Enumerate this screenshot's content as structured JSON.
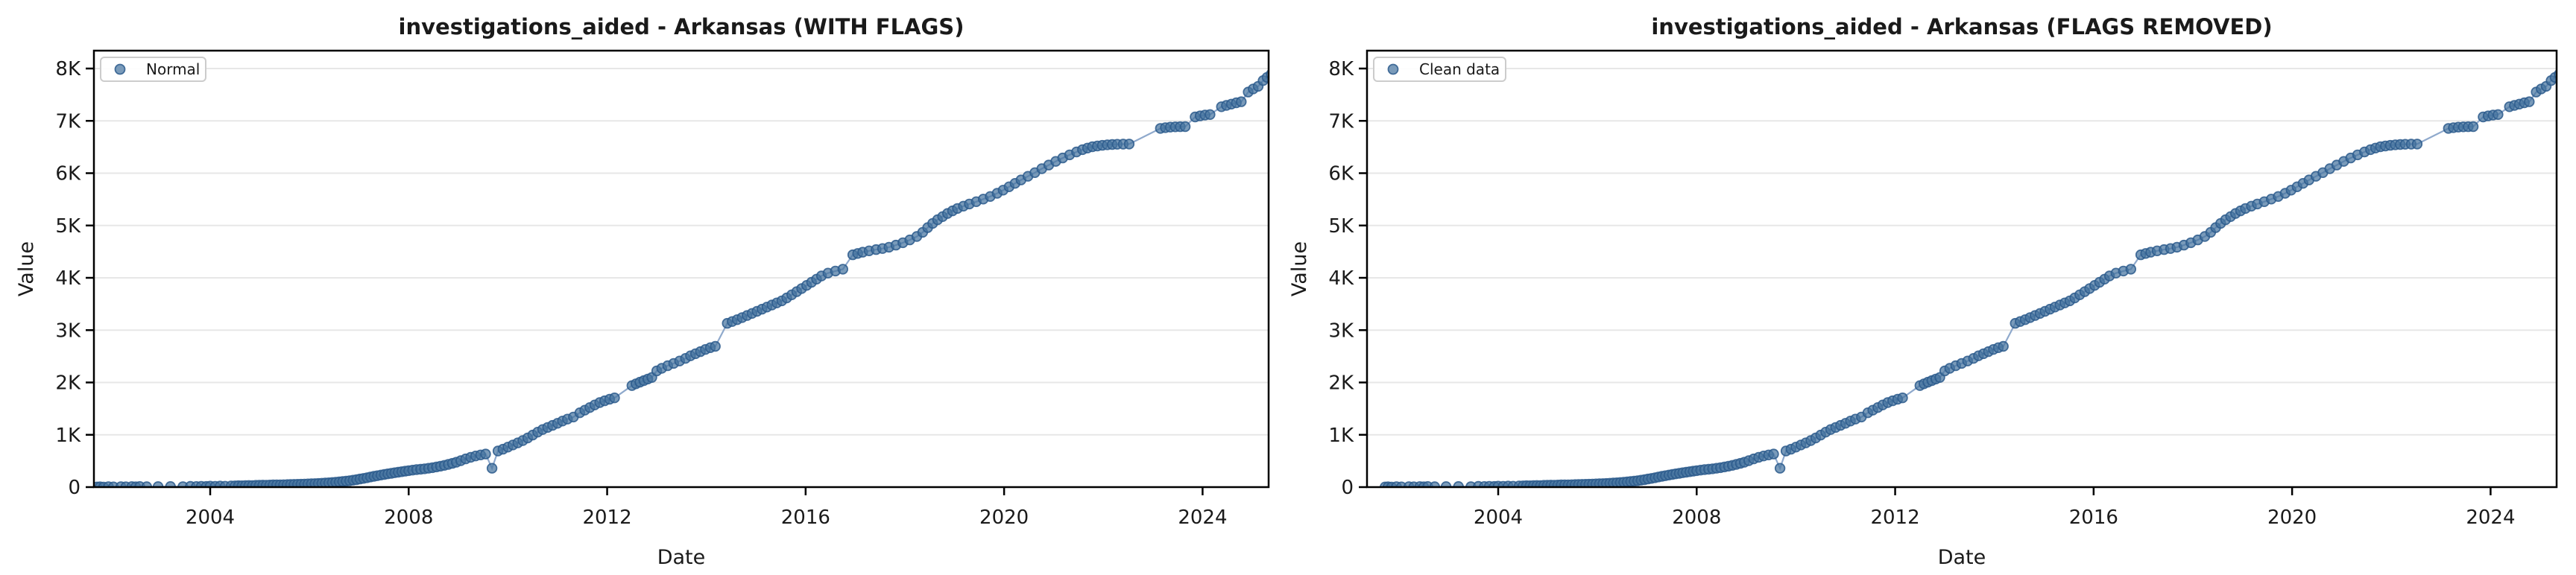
{
  "figure": {
    "background": "#ffffff",
    "marker_fill": "#46749f",
    "marker_fill_opacity": 0.72,
    "marker_edge": "#2c5a8c",
    "marker_edge_opacity": 0.85,
    "line_color": "#8fa9cc",
    "grid_color": "#e7e7e7",
    "spine_color": "#000000",
    "text_color": "#1a1a1a"
  },
  "chart_data": [
    {
      "type": "scatter",
      "title": "investigations_aided - Arkansas (WITH FLAGS)",
      "xlabel": "Date",
      "ylabel": "Value",
      "legend": {
        "label": "Normal",
        "position": "upper-left"
      },
      "grid": "horizontal",
      "x_ticks": [
        2004,
        2008,
        2012,
        2016,
        2020,
        2024
      ],
      "y_ticks": [
        [
          0,
          "0"
        ],
        [
          1000,
          "1K"
        ],
        [
          2000,
          "2K"
        ],
        [
          3000,
          "3K"
        ],
        [
          4000,
          "4K"
        ],
        [
          5000,
          "5K"
        ],
        [
          6000,
          "6K"
        ],
        [
          7000,
          "7K"
        ],
        [
          8000,
          "8K"
        ]
      ],
      "xlim": [
        2001.66,
        2025.36
      ],
      "ylim": [
        0,
        8340
      ],
      "points": [
        [
          2001.72,
          3
        ],
        [
          2001.78,
          6
        ],
        [
          2001.85,
          2
        ],
        [
          2001.95,
          8
        ],
        [
          2002.05,
          4
        ],
        [
          2002.2,
          9
        ],
        [
          2002.3,
          5
        ],
        [
          2002.42,
          10
        ],
        [
          2002.5,
          6
        ],
        [
          2002.58,
          12
        ],
        [
          2002.72,
          7
        ],
        [
          2002.95,
          10
        ],
        [
          2003.2,
          12
        ],
        [
          2003.45,
          9
        ],
        [
          2003.6,
          14
        ],
        [
          2003.72,
          11
        ],
        [
          2003.82,
          16
        ],
        [
          2003.92,
          13
        ],
        [
          2004.0,
          18
        ],
        [
          2004.1,
          15
        ],
        [
          2004.2,
          20
        ],
        [
          2004.3,
          17
        ],
        [
          2004.42,
          22
        ],
        [
          2004.5,
          24
        ],
        [
          2004.57,
          27
        ],
        [
          2004.64,
          25
        ],
        [
          2004.71,
          30
        ],
        [
          2004.78,
          32
        ],
        [
          2004.85,
          30
        ],
        [
          2004.92,
          34
        ],
        [
          2004.99,
          36
        ],
        [
          2005.06,
          38
        ],
        [
          2005.13,
          37
        ],
        [
          2005.2,
          40
        ],
        [
          2005.27,
          42
        ],
        [
          2005.34,
          44
        ],
        [
          2005.41,
          43
        ],
        [
          2005.48,
          46
        ],
        [
          2005.55,
          48
        ],
        [
          2005.62,
          50
        ],
        [
          2005.69,
          52
        ],
        [
          2005.76,
          54
        ],
        [
          2005.83,
          56
        ],
        [
          2005.9,
          58
        ],
        [
          2005.97,
          61
        ],
        [
          2006.04,
          64
        ],
        [
          2006.11,
          67
        ],
        [
          2006.18,
          70
        ],
        [
          2006.25,
          74
        ],
        [
          2006.32,
          78
        ],
        [
          2006.39,
          83
        ],
        [
          2006.46,
          88
        ],
        [
          2006.53,
          94
        ],
        [
          2006.6,
          100
        ],
        [
          2006.67,
          107
        ],
        [
          2006.74,
          114
        ],
        [
          2006.81,
          122
        ],
        [
          2006.88,
          132
        ],
        [
          2006.95,
          143
        ],
        [
          2007.02,
          155
        ],
        [
          2007.09,
          167
        ],
        [
          2007.16,
          180
        ],
        [
          2007.23,
          193
        ],
        [
          2007.3,
          206
        ],
        [
          2007.37,
          218
        ],
        [
          2007.44,
          230
        ],
        [
          2007.51,
          242
        ],
        [
          2007.58,
          253
        ],
        [
          2007.65,
          264
        ],
        [
          2007.72,
          275
        ],
        [
          2007.79,
          285
        ],
        [
          2007.86,
          295
        ],
        [
          2007.93,
          305
        ],
        [
          2008.0,
          315
        ],
        [
          2008.08,
          325
        ],
        [
          2008.16,
          334
        ],
        [
          2008.24,
          342
        ],
        [
          2008.32,
          350
        ],
        [
          2008.4,
          360
        ],
        [
          2008.48,
          372
        ],
        [
          2008.56,
          386
        ],
        [
          2008.64,
          400
        ],
        [
          2008.72,
          416
        ],
        [
          2008.8,
          434
        ],
        [
          2008.88,
          454
        ],
        [
          2008.96,
          476
        ],
        [
          2009.05,
          505
        ],
        [
          2009.15,
          540
        ],
        [
          2009.25,
          570
        ],
        [
          2009.35,
          595
        ],
        [
          2009.45,
          615
        ],
        [
          2009.55,
          632
        ],
        [
          2009.68,
          360
        ],
        [
          2009.8,
          690
        ],
        [
          2009.9,
          725
        ],
        [
          2010.0,
          765
        ],
        [
          2010.1,
          805
        ],
        [
          2010.2,
          845
        ],
        [
          2010.3,
          890
        ],
        [
          2010.4,
          940
        ],
        [
          2010.5,
          995
        ],
        [
          2010.6,
          1050
        ],
        [
          2010.7,
          1100
        ],
        [
          2010.8,
          1140
        ],
        [
          2010.9,
          1180
        ],
        [
          2011.0,
          1220
        ],
        [
          2011.1,
          1262
        ],
        [
          2011.2,
          1300
        ],
        [
          2011.32,
          1340
        ],
        [
          2011.45,
          1420
        ],
        [
          2011.55,
          1470
        ],
        [
          2011.65,
          1520
        ],
        [
          2011.75,
          1570
        ],
        [
          2011.85,
          1615
        ],
        [
          2011.95,
          1650
        ],
        [
          2012.05,
          1680
        ],
        [
          2012.15,
          1705
        ],
        [
          2012.5,
          1940
        ],
        [
          2012.58,
          1975
        ],
        [
          2012.66,
          2005
        ],
        [
          2012.74,
          2035
        ],
        [
          2012.82,
          2065
        ],
        [
          2012.9,
          2095
        ],
        [
          2013.0,
          2220
        ],
        [
          2013.1,
          2270
        ],
        [
          2013.22,
          2320
        ],
        [
          2013.34,
          2365
        ],
        [
          2013.46,
          2410
        ],
        [
          2013.58,
          2460
        ],
        [
          2013.68,
          2510
        ],
        [
          2013.78,
          2550
        ],
        [
          2013.88,
          2590
        ],
        [
          2013.98,
          2630
        ],
        [
          2014.08,
          2665
        ],
        [
          2014.18,
          2690
        ],
        [
          2014.42,
          3130
        ],
        [
          2014.52,
          3165
        ],
        [
          2014.62,
          3200
        ],
        [
          2014.72,
          3240
        ],
        [
          2014.82,
          3280
        ],
        [
          2014.92,
          3320
        ],
        [
          2015.02,
          3360
        ],
        [
          2015.12,
          3400
        ],
        [
          2015.22,
          3440
        ],
        [
          2015.32,
          3480
        ],
        [
          2015.42,
          3520
        ],
        [
          2015.52,
          3560
        ],
        [
          2015.62,
          3615
        ],
        [
          2015.72,
          3675
        ],
        [
          2015.82,
          3735
        ],
        [
          2015.92,
          3795
        ],
        [
          2016.02,
          3855
        ],
        [
          2016.12,
          3915
        ],
        [
          2016.22,
          3975
        ],
        [
          2016.32,
          4035
        ],
        [
          2016.45,
          4090
        ],
        [
          2016.6,
          4130
        ],
        [
          2016.75,
          4165
        ],
        [
          2016.95,
          4440
        ],
        [
          2017.05,
          4465
        ],
        [
          2017.15,
          4490
        ],
        [
          2017.28,
          4515
        ],
        [
          2017.42,
          4540
        ],
        [
          2017.55,
          4560
        ],
        [
          2017.68,
          4585
        ],
        [
          2017.82,
          4625
        ],
        [
          2017.96,
          4670
        ],
        [
          2018.1,
          4725
        ],
        [
          2018.24,
          4790
        ],
        [
          2018.36,
          4870
        ],
        [
          2018.46,
          4960
        ],
        [
          2018.56,
          5040
        ],
        [
          2018.66,
          5110
        ],
        [
          2018.76,
          5170
        ],
        [
          2018.86,
          5230
        ],
        [
          2018.96,
          5280
        ],
        [
          2019.06,
          5325
        ],
        [
          2019.18,
          5370
        ],
        [
          2019.3,
          5410
        ],
        [
          2019.44,
          5455
        ],
        [
          2019.58,
          5505
        ],
        [
          2019.72,
          5555
        ],
        [
          2019.86,
          5615
        ],
        [
          2019.98,
          5675
        ],
        [
          2020.1,
          5740
        ],
        [
          2020.22,
          5805
        ],
        [
          2020.34,
          5870
        ],
        [
          2020.48,
          5940
        ],
        [
          2020.62,
          6010
        ],
        [
          2020.76,
          6085
        ],
        [
          2020.9,
          6155
        ],
        [
          2021.04,
          6225
        ],
        [
          2021.18,
          6290
        ],
        [
          2021.32,
          6350
        ],
        [
          2021.46,
          6405
        ],
        [
          2021.58,
          6450
        ],
        [
          2021.68,
          6480
        ],
        [
          2021.78,
          6505
        ],
        [
          2021.88,
          6520
        ],
        [
          2021.98,
          6532
        ],
        [
          2022.08,
          6542
        ],
        [
          2022.18,
          6548
        ],
        [
          2022.28,
          6552
        ],
        [
          2022.4,
          6555
        ],
        [
          2022.52,
          6557
        ],
        [
          2023.15,
          6855
        ],
        [
          2023.25,
          6870
        ],
        [
          2023.35,
          6880
        ],
        [
          2023.45,
          6885
        ],
        [
          2023.55,
          6888
        ],
        [
          2023.65,
          6890
        ],
        [
          2023.85,
          7075
        ],
        [
          2023.95,
          7095
        ],
        [
          2024.05,
          7110
        ],
        [
          2024.15,
          7120
        ],
        [
          2024.38,
          7270
        ],
        [
          2024.48,
          7295
        ],
        [
          2024.58,
          7320
        ],
        [
          2024.68,
          7345
        ],
        [
          2024.78,
          7365
        ],
        [
          2024.92,
          7550
        ],
        [
          2025.02,
          7610
        ],
        [
          2025.12,
          7660
        ],
        [
          2025.22,
          7770
        ],
        [
          2025.3,
          7830
        ],
        [
          2025.38,
          7890
        ]
      ]
    },
    {
      "type": "scatter",
      "title": "investigations_aided - Arkansas (FLAGS REMOVED)",
      "xlabel": "Date",
      "ylabel": "Value",
      "legend": {
        "label": "Clean data",
        "position": "upper-left"
      },
      "grid": "horizontal",
      "x_ticks": [
        2004,
        2008,
        2012,
        2016,
        2020,
        2024
      ],
      "y_ticks": [
        [
          0,
          "0"
        ],
        [
          1000,
          "1K"
        ],
        [
          2000,
          "2K"
        ],
        [
          3000,
          "3K"
        ],
        [
          4000,
          "4K"
        ],
        [
          5000,
          "5K"
        ],
        [
          6000,
          "6K"
        ],
        [
          7000,
          "7K"
        ],
        [
          8000,
          "8K"
        ]
      ],
      "xlim": [
        2001.36,
        2025.36
      ],
      "ylim": [
        0,
        8340
      ],
      "points": "same_as_first"
    }
  ]
}
